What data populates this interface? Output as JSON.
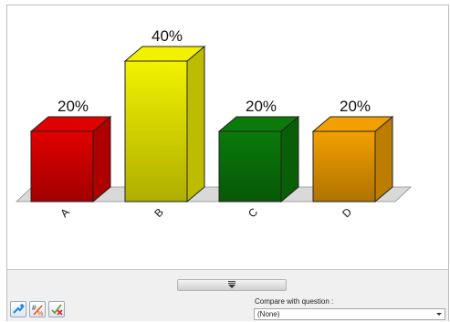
{
  "chart_data": {
    "type": "bar",
    "style": "3d",
    "categories": [
      "A",
      "B",
      "C",
      "D"
    ],
    "values": [
      20,
      40,
      20,
      20
    ],
    "data_labels": [
      "20%",
      "40%",
      "20%",
      "20%"
    ],
    "colors": [
      "#e00000",
      "#f2f200",
      "#0a7a0a",
      "#f2a000"
    ],
    "ylim": [
      0,
      40
    ],
    "grid": false,
    "legend": "none"
  },
  "bottom_panel": {
    "collapse_icon": "triple-bar-down-icon",
    "tools": [
      {
        "icon": "run-icon"
      },
      {
        "icon": "numbers-percent-icon"
      },
      {
        "icon": "clear-icon"
      }
    ],
    "compare_label": "Compare with question :",
    "compare_value": "(None)"
  }
}
